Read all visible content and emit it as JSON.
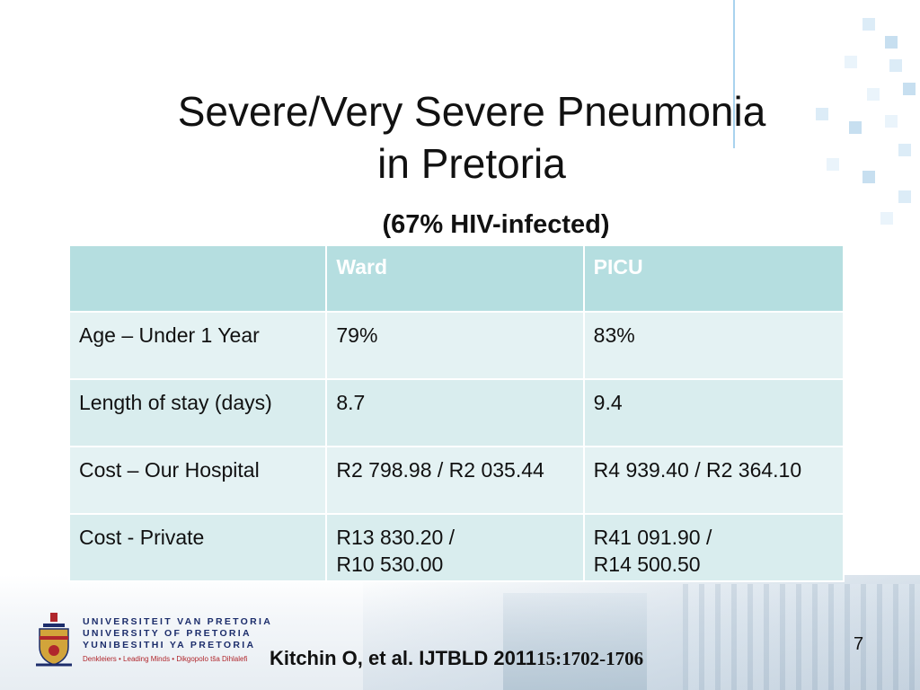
{
  "slide": {
    "title_line1": "Severe/Very Severe Pneumonia",
    "title_line2": "in Pretoria",
    "subtitle": "(67% HIV-infected)",
    "page_number": "7"
  },
  "table": {
    "headers": [
      "",
      "Ward",
      "PICU"
    ],
    "rows": [
      [
        "Age – Under 1 Year",
        "79%",
        "83%"
      ],
      [
        "Length of stay (days)",
        "8.7",
        "9.4"
      ],
      [
        "Cost – Our Hospital",
        "R2 798.98 / R2 035.44",
        "R4 939.40 / R2 364.10"
      ],
      [
        "Cost - Private",
        "R13 830.20 /\nR10 530.00",
        "R41 091.90 /\nR14 500.50"
      ]
    ]
  },
  "citation": {
    "main": "Kitchin O, et al. IJTBLD 2011",
    "volume": "15:1702-1706"
  },
  "logo": {
    "line1": "UNIVERSITEIT VAN PRETORIA",
    "line2": "UNIVERSITY OF PRETORIA",
    "line3": "YUNIBESITHI YA PRETORIA",
    "tagline": "Denkleiers • Leading Minds • Dikgopolo tša Dihlalefi"
  },
  "colors": {
    "header_fill": "#b5dee0",
    "row_fill": "#e4f2f3",
    "logo_text": "#1c2d6b",
    "logo_tagline": "#b0262c"
  }
}
